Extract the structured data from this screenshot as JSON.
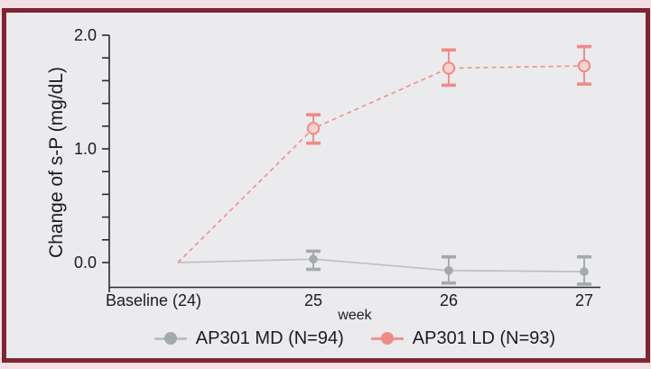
{
  "page": {
    "outer_background": "#f3e0e4"
  },
  "frame": {
    "border_color": "#7e2433",
    "background": "#ebebed"
  },
  "chart_data": {
    "type": "line",
    "title": "",
    "xlabel": "week",
    "ylabel": "Change of s-P (mg/dL)",
    "categories": [
      "Baseline (24)",
      "25",
      "26",
      "27"
    ],
    "ylim": [
      -0.26,
      2.0
    ],
    "ytick_step": 0.2,
    "ytick_labels": [
      "0.0",
      "1.0",
      "2.0"
    ],
    "ytick_label_values": [
      0.0,
      1.0,
      2.0
    ],
    "grid": false,
    "legend_position": "bottom",
    "axis_color": "#2b2b2d",
    "series": [
      {
        "name": "AP301 MD (N=94)",
        "color": "#a4a9ad",
        "line_color": "#bdc0c2",
        "line_style": "solid",
        "marker": "filled-circle",
        "values": [
          0.0,
          0.03,
          -0.07,
          -0.08
        ],
        "err_high": [
          null,
          0.1,
          0.05,
          0.05
        ],
        "err_low": [
          null,
          -0.06,
          -0.18,
          -0.19
        ]
      },
      {
        "name": "AP301 LD (N=93)",
        "color": "#ee8b86",
        "line_color": "#f0938f",
        "line_style": "dashed",
        "marker": "open-circle",
        "marker_fill": "#f8d2ce",
        "values": [
          0.0,
          1.18,
          1.71,
          1.73
        ],
        "err_high": [
          null,
          1.3,
          1.87,
          1.9
        ],
        "err_low": [
          null,
          1.05,
          1.56,
          1.57
        ]
      }
    ]
  }
}
